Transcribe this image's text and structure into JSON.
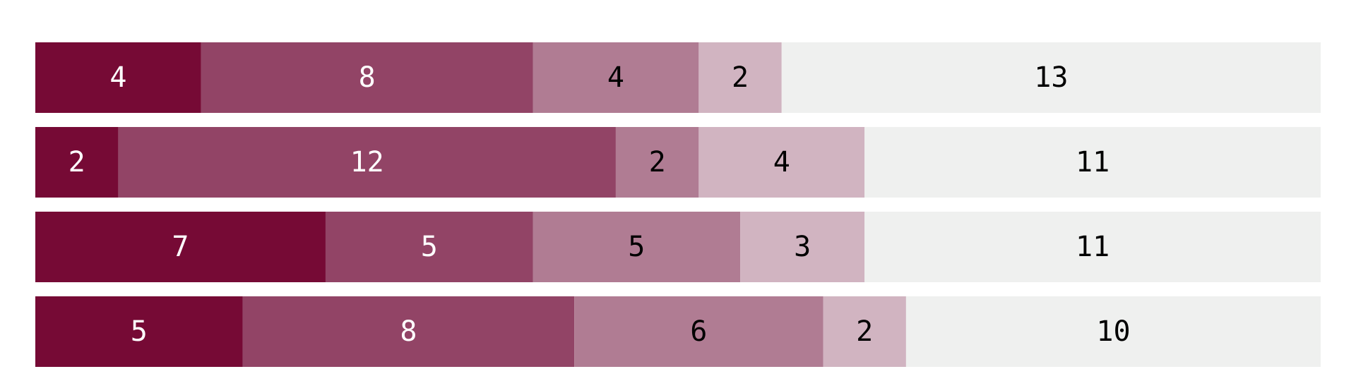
{
  "chart_data": {
    "type": "bar",
    "orientation": "horizontal",
    "stacked": true,
    "series": [
      {
        "color": "#760a35",
        "label_color": "#ffffff",
        "values": [
          4,
          2,
          7,
          5
        ]
      },
      {
        "color": "#924466",
        "label_color": "#ffffff",
        "values": [
          8,
          12,
          5,
          8
        ]
      },
      {
        "color": "#b07c93",
        "label_color": "#000000",
        "values": [
          4,
          2,
          5,
          6
        ]
      },
      {
        "color": "#d1b4c1",
        "label_color": "#000000",
        "values": [
          2,
          4,
          3,
          2
        ]
      },
      {
        "color": "#eff0ef",
        "label_color": "#000000",
        "values": [
          13,
          11,
          11,
          10
        ]
      }
    ]
  }
}
